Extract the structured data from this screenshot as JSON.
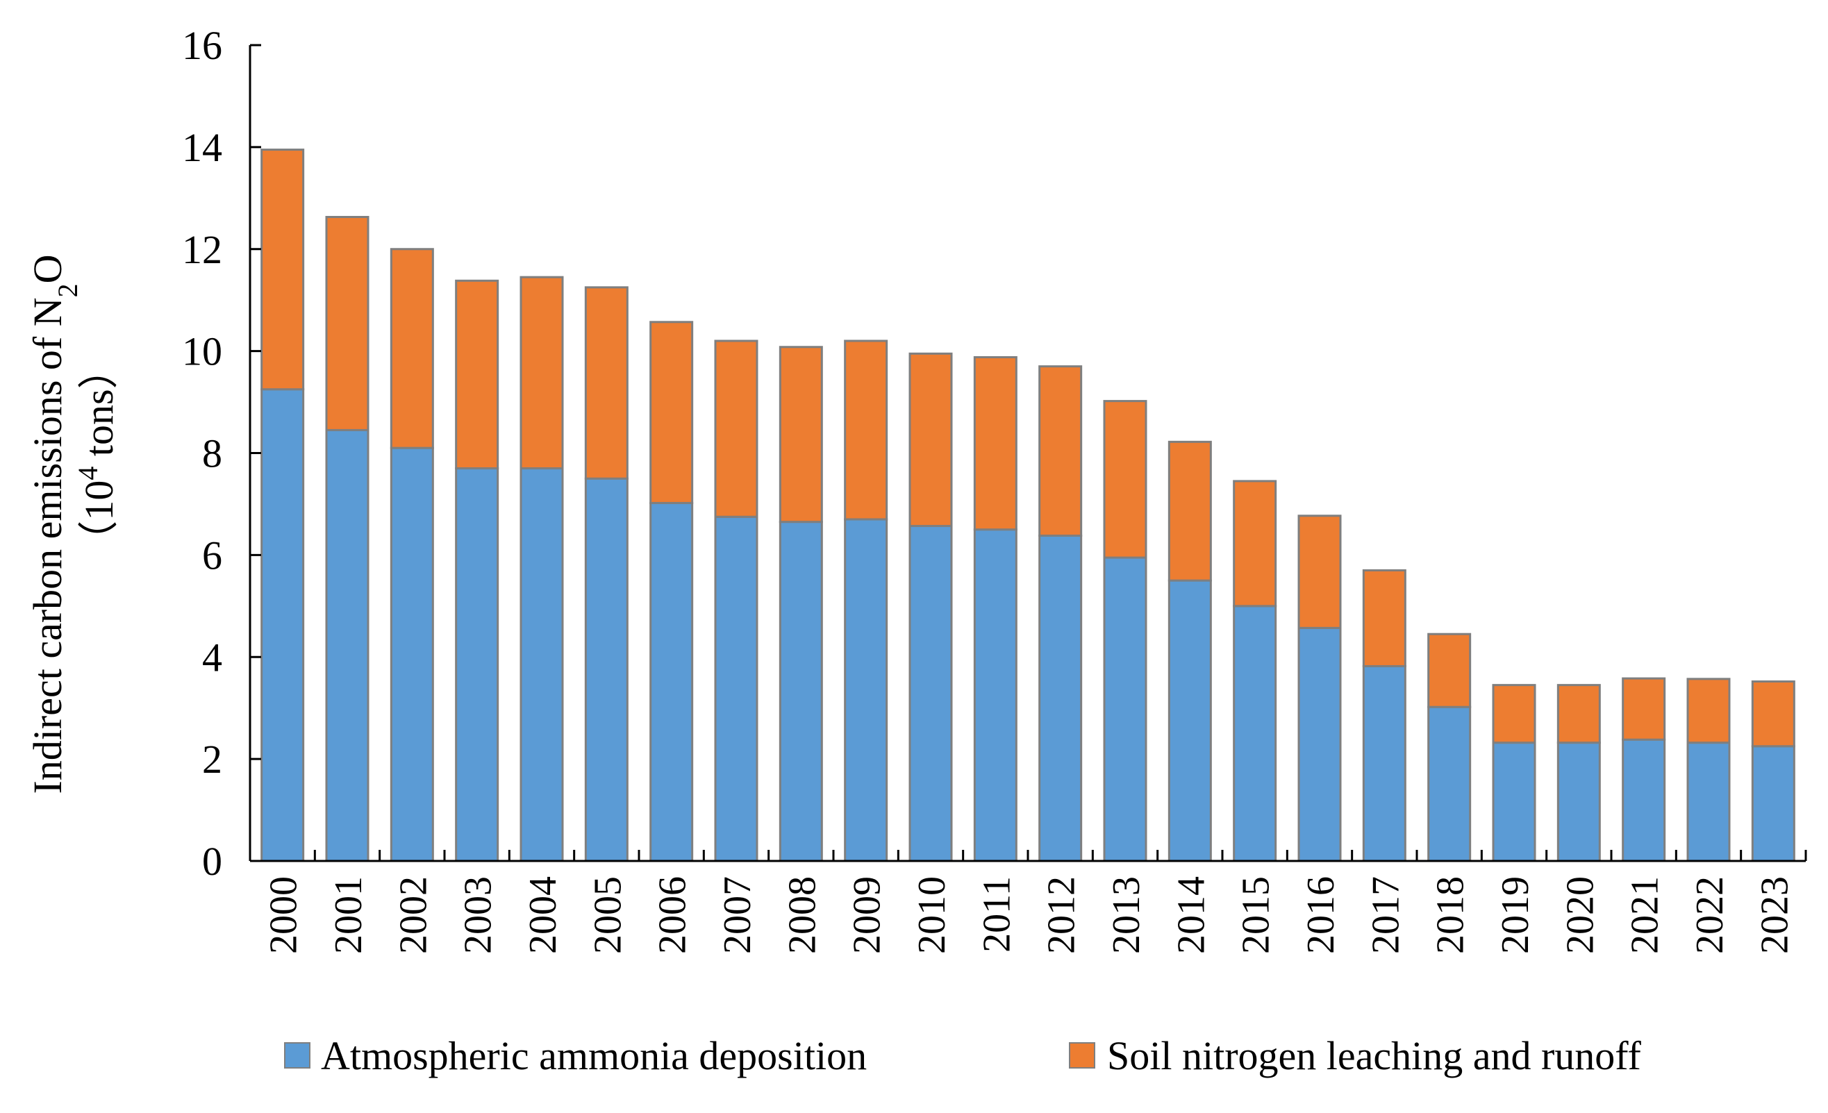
{
  "chart_data": {
    "type": "bar",
    "stacked": true,
    "title": "",
    "xlabel": "",
    "ylabel": {
      "line1_prefix": "Indirect carbon emissions  of N",
      "line1_sub": "2",
      "line1_suffix": "O",
      "line2_open": "（10",
      "line2_sup": "4",
      "line2_close": " tons）"
    },
    "ylim": [
      0,
      16
    ],
    "yticks": [
      "0",
      "2",
      "4",
      "6",
      "8",
      "10",
      "12",
      "14",
      "16"
    ],
    "categories": [
      "2000",
      "2001",
      "2002",
      "2003",
      "2004",
      "2005",
      "2006",
      "2007",
      "2008",
      "2009",
      "2010",
      "2011",
      "2012",
      "2013",
      "2014",
      "2015",
      "2016",
      "2017",
      "2018",
      "2019",
      "2020",
      "2021",
      "2022",
      "2023"
    ],
    "series": [
      {
        "name": "Atmospheric ammonia deposition",
        "color": "#5B9BD5",
        "values": [
          9.25,
          8.45,
          8.1,
          7.7,
          7.7,
          7.5,
          7.02,
          6.75,
          6.65,
          6.7,
          6.57,
          6.5,
          6.38,
          5.95,
          5.5,
          5.0,
          4.57,
          3.82,
          3.02,
          2.32,
          2.32,
          2.38,
          2.32,
          2.25
        ]
      },
      {
        "name": "Soil nitrogen leaching and runoff",
        "color": "#ED7D31",
        "values": [
          4.7,
          4.18,
          3.9,
          3.68,
          3.75,
          3.75,
          3.55,
          3.45,
          3.43,
          3.5,
          3.38,
          3.38,
          3.32,
          3.07,
          2.72,
          2.45,
          2.2,
          1.88,
          1.43,
          1.13,
          1.13,
          1.2,
          1.25,
          1.27
        ]
      }
    ],
    "bar_outline_color": "#7F7F7F",
    "legend_position": "bottom"
  }
}
